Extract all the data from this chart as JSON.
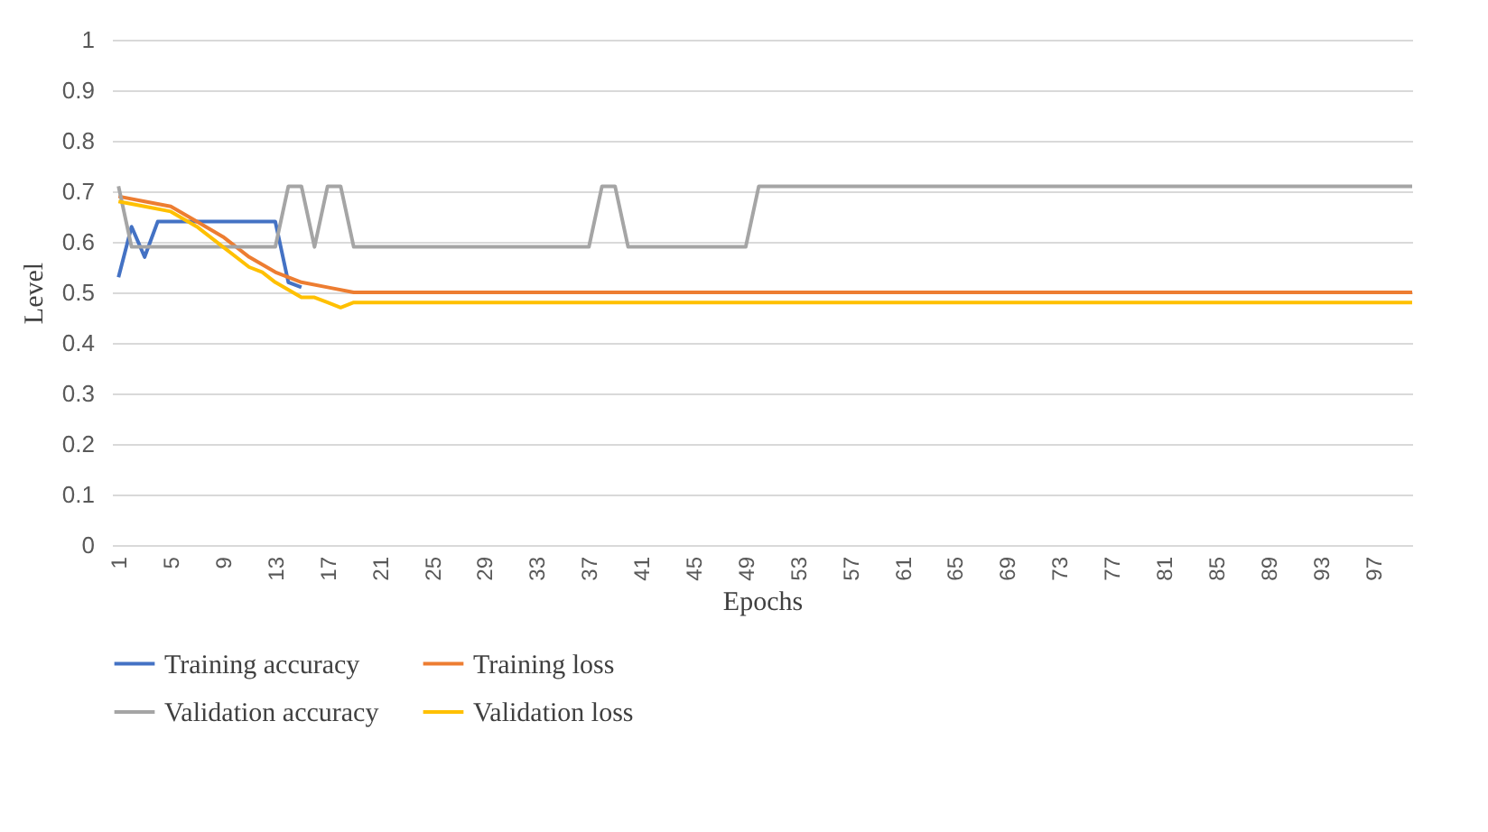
{
  "chart_data": {
    "type": "line",
    "xlabel": "Epochs",
    "ylabel": "Level",
    "xlim": [
      0.5,
      100
    ],
    "xticks": [
      1,
      5,
      9,
      13,
      17,
      21,
      25,
      29,
      33,
      37,
      41,
      45,
      49,
      53,
      57,
      61,
      65,
      69,
      73,
      77,
      81,
      85,
      89,
      93,
      97
    ],
    "ylim": [
      0,
      1
    ],
    "yticks": [
      0,
      0.1,
      0.2,
      0.3,
      0.4,
      0.5,
      0.6,
      0.7,
      0.8,
      0.9,
      1
    ],
    "grid": "y",
    "legend": "bottom",
    "marker": "none",
    "line_style": "solid",
    "series": [
      {
        "name": "Training accuracy",
        "color": "#4472c4",
        "x": [
          1,
          2,
          3,
          4,
          13,
          14,
          15
        ],
        "values": [
          0.53,
          0.63,
          0.57,
          0.64,
          0.64,
          0.52,
          0.51
        ]
      },
      {
        "name": "Training loss",
        "color": "#ed7d31",
        "x": [
          1,
          3,
          5,
          7,
          9,
          11,
          13,
          15,
          17,
          19,
          100
        ],
        "values": [
          0.69,
          0.68,
          0.67,
          0.64,
          0.61,
          0.57,
          0.54,
          0.52,
          0.51,
          0.5,
          0.5
        ]
      },
      {
        "name": "Validation accuracy",
        "color": "#a5a5a5",
        "x": [
          1,
          2,
          13,
          14,
          15,
          16,
          17,
          18,
          19,
          37,
          38,
          39,
          40,
          49,
          50,
          100
        ],
        "values": [
          0.71,
          0.59,
          0.59,
          0.71,
          0.71,
          0.59,
          0.71,
          0.71,
          0.59,
          0.59,
          0.71,
          0.71,
          0.59,
          0.59,
          0.71,
          0.71
        ]
      },
      {
        "name": "Validation loss",
        "color": "#ffc000",
        "x": [
          1,
          3,
          5,
          7,
          9,
          11,
          12,
          13,
          15,
          16,
          17,
          18,
          19,
          100
        ],
        "values": [
          0.68,
          0.67,
          0.66,
          0.63,
          0.59,
          0.55,
          0.54,
          0.52,
          0.49,
          0.49,
          0.48,
          0.47,
          0.48,
          0.48
        ]
      }
    ]
  }
}
